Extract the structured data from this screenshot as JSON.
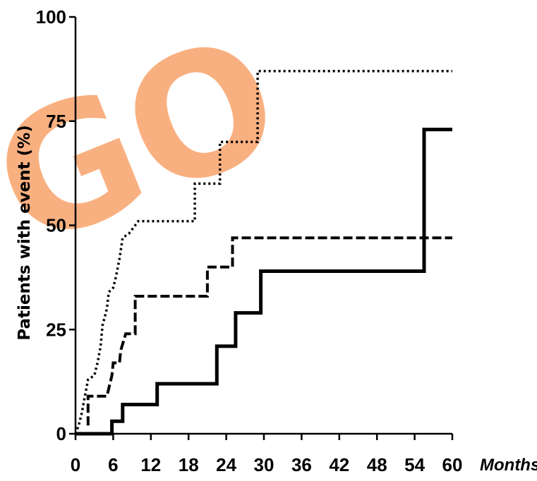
{
  "watermark": {
    "text": "GO",
    "color": "#f8a36a"
  },
  "chart_data": {
    "type": "line",
    "ylabel": "Patients with event (%)",
    "xunit": "Months",
    "xlim": [
      0,
      60
    ],
    "ylim": [
      0,
      100
    ],
    "xticks": [
      0,
      6,
      12,
      18,
      24,
      30,
      36,
      42,
      48,
      54,
      60
    ],
    "yticks": [
      0,
      25,
      50,
      75,
      100
    ],
    "grid": false,
    "legend": "none",
    "series": [
      {
        "style": "dotted",
        "color": "#000000",
        "points": [
          [
            0,
            0
          ],
          [
            0.5,
            2
          ],
          [
            1,
            5
          ],
          [
            1.5,
            9
          ],
          [
            2,
            13
          ],
          [
            3,
            14
          ],
          [
            3.5,
            17
          ],
          [
            4,
            21
          ],
          [
            4.3,
            26
          ],
          [
            5,
            30
          ],
          [
            5.3,
            34
          ],
          [
            6,
            35
          ],
          [
            6.5,
            38
          ],
          [
            7,
            42
          ],
          [
            7.5,
            47
          ],
          [
            8.5,
            48
          ],
          [
            9.5,
            50
          ],
          [
            10,
            51
          ],
          [
            19,
            51
          ],
          [
            19,
            60
          ],
          [
            23,
            60
          ],
          [
            23,
            70
          ],
          [
            29,
            70
          ],
          [
            29,
            87
          ],
          [
            60,
            87
          ]
        ]
      },
      {
        "style": "dashed",
        "color": "#000000",
        "points": [
          [
            2,
            2
          ],
          [
            2,
            9
          ],
          [
            5,
            9
          ],
          [
            5.8,
            14
          ],
          [
            6,
            17
          ],
          [
            7,
            17
          ],
          [
            7.2,
            20
          ],
          [
            8,
            24
          ],
          [
            9.5,
            24
          ],
          [
            9.5,
            33
          ],
          [
            21,
            33
          ],
          [
            21,
            40
          ],
          [
            25,
            40
          ],
          [
            25,
            47
          ],
          [
            60,
            47
          ]
        ]
      },
      {
        "style": "solid",
        "color": "#000000",
        "points": [
          [
            0,
            0
          ],
          [
            5.8,
            0
          ],
          [
            5.8,
            3
          ],
          [
            7.5,
            3
          ],
          [
            7.5,
            7
          ],
          [
            13,
            7
          ],
          [
            13,
            12
          ],
          [
            22.5,
            12
          ],
          [
            22.5,
            21
          ],
          [
            25.5,
            21
          ],
          [
            25.5,
            29
          ],
          [
            29.5,
            29
          ],
          [
            29.5,
            39
          ],
          [
            55.5,
            39
          ],
          [
            55.5,
            73
          ],
          [
            60,
            73
          ]
        ]
      }
    ]
  }
}
